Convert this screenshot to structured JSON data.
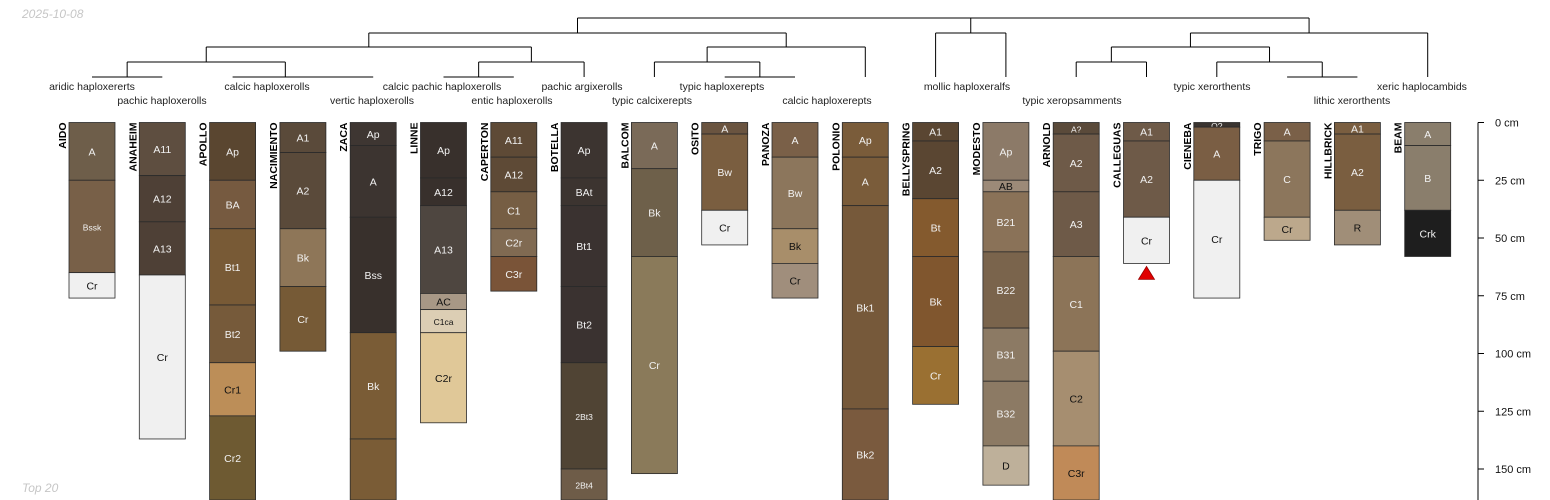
{
  "date_label": "2025-10-08",
  "footer_label": "Top 20",
  "chart_data": {
    "type": "soil-profile-sketch",
    "depth_axis": {
      "unit": "cm",
      "min": 0,
      "max": 163,
      "ticks": [
        0,
        25,
        50,
        75,
        100,
        125,
        150
      ],
      "tick_labels": [
        "0 cm",
        "25 cm",
        "50 cm",
        "75 cm",
        "100 cm",
        "125 cm",
        "150 cm"
      ]
    },
    "dendrogram_labels": [
      {
        "text": "aridic haploxererts",
        "row": 1
      },
      {
        "text": "pachic haploxerolls",
        "row": 2
      },
      {
        "text": "calcic haploxerolls",
        "row": 1
      },
      {
        "text": "vertic haploxerolls",
        "row": 2
      },
      {
        "text": "calcic pachic haploxerolls",
        "row": 1
      },
      {
        "text": "entic haploxerolls",
        "row": 2
      },
      {
        "text": "pachic argixerolls",
        "row": 1
      },
      {
        "text": "typic calcixerepts",
        "row": 2
      },
      {
        "text": "typic haploxerepts",
        "row": 1
      },
      {
        "text": "calcic haploxerepts",
        "row": 2
      },
      {
        "text": "mollic haploxeralfs",
        "row": 1
      },
      {
        "text": "typic xeropsamments",
        "row": 2
      },
      {
        "text": "typic xerorthents",
        "row": 1
      },
      {
        "text": "lithic xerorthents",
        "row": 2
      },
      {
        "text": "xeric haplocambids",
        "row": 1
      }
    ],
    "profiles": [
      {
        "name": "AIDO",
        "horizons": [
          {
            "name": "A",
            "top": 0,
            "bottom": 25,
            "color": "#6E5E4A"
          },
          {
            "name": "Bssk",
            "top": 25,
            "bottom": 65,
            "color": "#786048",
            "small": true
          },
          {
            "name": "Cr",
            "top": 65,
            "bottom": 76,
            "color": "#F0F0F0"
          }
        ]
      },
      {
        "name": "ANAHEIM",
        "horizons": [
          {
            "name": "A11",
            "top": 0,
            "bottom": 23,
            "color": "#5E4E40"
          },
          {
            "name": "A12",
            "top": 23,
            "bottom": 43,
            "color": "#4E4036"
          },
          {
            "name": "A13",
            "top": 43,
            "bottom": 66,
            "color": "#4E4036"
          },
          {
            "name": "Cr",
            "top": 66,
            "bottom": 137,
            "color": "#F0F0F0"
          }
        ]
      },
      {
        "name": "APOLLO",
        "horizons": [
          {
            "name": "Ap",
            "top": 0,
            "bottom": 25,
            "color": "#5A4630"
          },
          {
            "name": "BA",
            "top": 25,
            "bottom": 46,
            "color": "#765A40"
          },
          {
            "name": "Bt1",
            "top": 46,
            "bottom": 79,
            "color": "#785A36"
          },
          {
            "name": "Bt2",
            "top": 79,
            "bottom": 104,
            "color": "#765A3A"
          },
          {
            "name": "Cr1",
            "top": 104,
            "bottom": 127,
            "color": "#BC8E58"
          },
          {
            "name": "Cr2",
            "top": 127,
            "bottom": 165,
            "color": "#6E5A32"
          }
        ]
      },
      {
        "name": "NACIMIENTO",
        "horizons": [
          {
            "name": "A1",
            "top": 0,
            "bottom": 13,
            "color": "#5A4A3A"
          },
          {
            "name": "A2",
            "top": 13,
            "bottom": 46,
            "color": "#5A4A3A"
          },
          {
            "name": "Bk",
            "top": 46,
            "bottom": 71,
            "color": "#8E7658"
          },
          {
            "name": "Cr",
            "top": 71,
            "bottom": 99,
            "color": "#765A36"
          }
        ]
      },
      {
        "name": "ZACA",
        "horizons": [
          {
            "name": "Ap",
            "top": 0,
            "bottom": 10,
            "color": "#3E3632"
          },
          {
            "name": "A",
            "top": 10,
            "bottom": 41,
            "color": "#3C3430"
          },
          {
            "name": "Bss",
            "top": 41,
            "bottom": 91,
            "color": "#38302C"
          },
          {
            "name": "Bk",
            "top": 91,
            "bottom": 137,
            "color": "#7A5C36"
          },
          {
            "name": "",
            "top": 137,
            "bottom": 165,
            "color": "#7A5C36"
          }
        ]
      },
      {
        "name": "LINNE",
        "horizons": [
          {
            "name": "Ap",
            "top": 0,
            "bottom": 24,
            "color": "#38302C"
          },
          {
            "name": "A12",
            "top": 24,
            "bottom": 36,
            "color": "#38302C"
          },
          {
            "name": "A13",
            "top": 36,
            "bottom": 74,
            "color": "#4E4640"
          },
          {
            "name": "AC",
            "top": 74,
            "bottom": 81,
            "color": "#A89886"
          },
          {
            "name": "C1ca",
            "top": 81,
            "bottom": 91,
            "color": "#DCCEB4",
            "small": true
          },
          {
            "name": "C2r",
            "top": 91,
            "bottom": 130,
            "color": "#E0C898"
          }
        ]
      },
      {
        "name": "CAPERTON",
        "horizons": [
          {
            "name": "A11",
            "top": 0,
            "bottom": 15,
            "color": "#5E4A36"
          },
          {
            "name": "A12",
            "top": 15,
            "bottom": 30,
            "color": "#5E4A36"
          },
          {
            "name": "C1",
            "top": 30,
            "bottom": 46,
            "color": "#765E44"
          },
          {
            "name": "C2r",
            "top": 46,
            "bottom": 58,
            "color": "#806A52"
          },
          {
            "name": "C3r",
            "top": 58,
            "bottom": 73,
            "color": "#7A5438"
          }
        ]
      },
      {
        "name": "BOTELLA",
        "horizons": [
          {
            "name": "Ap",
            "top": 0,
            "bottom": 24,
            "color": "#3C3430"
          },
          {
            "name": "BAt",
            "top": 24,
            "bottom": 36,
            "color": "#3C3430"
          },
          {
            "name": "Bt1",
            "top": 36,
            "bottom": 71,
            "color": "#3A3230"
          },
          {
            "name": "Bt2",
            "top": 71,
            "bottom": 104,
            "color": "#3A3230"
          },
          {
            "name": "2Bt3",
            "top": 104,
            "bottom": 150,
            "color": "#504434",
            "small": true
          },
          {
            "name": "2Bt4",
            "top": 150,
            "bottom": 165,
            "color": "#6E5C48",
            "small": true
          }
        ]
      },
      {
        "name": "BALCOM",
        "horizons": [
          {
            "name": "A",
            "top": 0,
            "bottom": 20,
            "color": "#7A6A58"
          },
          {
            "name": "Bk",
            "top": 20,
            "bottom": 58,
            "color": "#6E604A"
          },
          {
            "name": "Cr",
            "top": 58,
            "bottom": 152,
            "color": "#8A7A5A"
          }
        ]
      },
      {
        "name": "OSITO",
        "horizons": [
          {
            "name": "A",
            "top": 0,
            "bottom": 5,
            "color": "#6A5440"
          },
          {
            "name": "Bw",
            "top": 5,
            "bottom": 38,
            "color": "#7A5E40"
          },
          {
            "name": "Cr",
            "top": 38,
            "bottom": 53,
            "color": "#F0F0F0"
          }
        ]
      },
      {
        "name": "PANOZA",
        "horizons": [
          {
            "name": "A",
            "top": 0,
            "bottom": 15,
            "color": "#7A6048"
          },
          {
            "name": "Bw",
            "top": 15,
            "bottom": 46,
            "color": "#8C765C"
          },
          {
            "name": "Bk",
            "top": 46,
            "bottom": 61,
            "color": "#A88E6A"
          },
          {
            "name": "Cr",
            "top": 61,
            "bottom": 76,
            "color": "#A08E7C"
          }
        ]
      },
      {
        "name": "POLONIO",
        "horizons": [
          {
            "name": "Ap",
            "top": 0,
            "bottom": 15,
            "color": "#7A5C3A"
          },
          {
            "name": "A",
            "top": 15,
            "bottom": 36,
            "color": "#7A5C3A"
          },
          {
            "name": "Bk1",
            "top": 36,
            "bottom": 124,
            "color": "#76593A"
          },
          {
            "name": "Bk2",
            "top": 124,
            "bottom": 165,
            "color": "#7A5A3E"
          }
        ]
      },
      {
        "name": "BELLYSPRING",
        "horizons": [
          {
            "name": "A1",
            "top": 0,
            "bottom": 8,
            "color": "#5A4632"
          },
          {
            "name": "A2",
            "top": 8,
            "bottom": 33,
            "color": "#5A4632"
          },
          {
            "name": "Bt",
            "top": 33,
            "bottom": 58,
            "color": "#845A2E"
          },
          {
            "name": "Bk",
            "top": 58,
            "bottom": 97,
            "color": "#80562E"
          },
          {
            "name": "Cr",
            "top": 97,
            "bottom": 122,
            "color": "#9A7032"
          }
        ]
      },
      {
        "name": "MODESTO",
        "horizons": [
          {
            "name": "Ap",
            "top": 0,
            "bottom": 25,
            "color": "#8C7A68"
          },
          {
            "name": "AB",
            "top": 25,
            "bottom": 30,
            "color": "#9C8A78"
          },
          {
            "name": "B21",
            "top": 30,
            "bottom": 56,
            "color": "#8A7258"
          },
          {
            "name": "B22",
            "top": 56,
            "bottom": 89,
            "color": "#7A644C"
          },
          {
            "name": "B31",
            "top": 89,
            "bottom": 112,
            "color": "#8C7A64"
          },
          {
            "name": "B32",
            "top": 112,
            "bottom": 140,
            "color": "#8C7A64"
          },
          {
            "name": "D",
            "top": 140,
            "bottom": 157,
            "color": "#BEB09A"
          }
        ]
      },
      {
        "name": "ARNOLD",
        "horizons": [
          {
            "name": "A?",
            "top": 0,
            "bottom": 5,
            "color": "#5A4A3A",
            "small": true
          },
          {
            "name": "A2",
            "top": 5,
            "bottom": 30,
            "color": "#6E5A48"
          },
          {
            "name": "A3",
            "top": 30,
            "bottom": 58,
            "color": "#6E5A48"
          },
          {
            "name": "C1",
            "top": 58,
            "bottom": 99,
            "color": "#8C7458"
          },
          {
            "name": "C2",
            "top": 99,
            "bottom": 140,
            "color": "#A68E70"
          },
          {
            "name": "C3r",
            "top": 140,
            "bottom": 165,
            "color": "#C08A58"
          }
        ]
      },
      {
        "name": "CALLEGUAS",
        "redirect": true,
        "horizons": [
          {
            "name": "A1",
            "top": 0,
            "bottom": 8,
            "color": "#6E5A48"
          },
          {
            "name": "A2",
            "top": 8,
            "bottom": 41,
            "color": "#6E5A48"
          },
          {
            "name": "Cr",
            "top": 41,
            "bottom": 61,
            "color": "#F0F0F0"
          }
        ]
      },
      {
        "name": "CIENEBA",
        "horizons": [
          {
            "name": "O?",
            "top": 0,
            "bottom": 2,
            "color": "#3A3430",
            "small": true
          },
          {
            "name": "A",
            "top": 2,
            "bottom": 25,
            "color": "#7A5E44"
          },
          {
            "name": "Cr",
            "top": 25,
            "bottom": 76,
            "color": "#F0F0F0"
          }
        ]
      },
      {
        "name": "TRIGO",
        "horizons": [
          {
            "name": "A",
            "top": 0,
            "bottom": 8,
            "color": "#7A6048"
          },
          {
            "name": "C",
            "top": 8,
            "bottom": 41,
            "color": "#8C765C"
          },
          {
            "name": "Cr",
            "top": 41,
            "bottom": 51,
            "color": "#BCA88C"
          }
        ]
      },
      {
        "name": "HILLBRICK",
        "horizons": [
          {
            "name": "A1",
            "top": 0,
            "bottom": 5,
            "color": "#7A5E40"
          },
          {
            "name": "A2",
            "top": 5,
            "bottom": 38,
            "color": "#7A5E40"
          },
          {
            "name": "R",
            "top": 38,
            "bottom": 53,
            "color": "#A08E78"
          }
        ]
      },
      {
        "name": "BEAM",
        "horizons": [
          {
            "name": "A",
            "top": 0,
            "bottom": 10,
            "color": "#8A7E6C"
          },
          {
            "name": "B",
            "top": 10,
            "bottom": 38,
            "color": "#8A7E6C"
          },
          {
            "name": "Crk",
            "top": 38,
            "bottom": 58,
            "color": "#1E1E1E"
          }
        ]
      }
    ]
  }
}
